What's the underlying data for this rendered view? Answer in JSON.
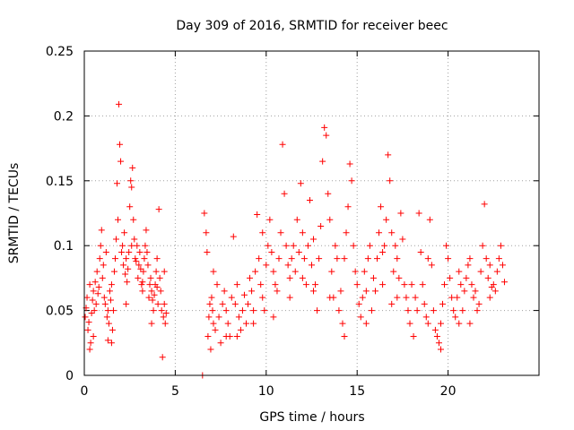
{
  "chart_data": {
    "type": "scatter",
    "title": "Day 309 of 2016, SRMTID for receiver beec",
    "xlabel": "GPS time / hours",
    "ylabel": "SRMTID / TECUs",
    "xlim": [
      0,
      25
    ],
    "ylim": [
      0,
      0.25
    ],
    "x_ticks": [
      0,
      5,
      10,
      15,
      20
    ],
    "x_tick_labels": [
      "0",
      "5",
      "10",
      "15",
      "20"
    ],
    "y_ticks": [
      0,
      0.05,
      0.1,
      0.15,
      0.2,
      0.25
    ],
    "y_tick_labels": [
      "0",
      "0.05",
      "0.1",
      "0.15",
      "0.2",
      "0.25"
    ],
    "grid": true,
    "marker": "plus",
    "color": "#ff0000",
    "series": [
      {
        "name": "SRMTID",
        "points": [
          [
            0.05,
            0.045
          ],
          [
            0.1,
            0.052
          ],
          [
            0.15,
            0.06
          ],
          [
            0.2,
            0.035
          ],
          [
            0.25,
            0.041
          ],
          [
            0.3,
            0.07
          ],
          [
            0.35,
            0.025
          ],
          [
            0.4,
            0.048
          ],
          [
            0.45,
            0.058
          ],
          [
            0.5,
            0.065
          ],
          [
            0.55,
            0.05
          ],
          [
            0.6,
            0.072
          ],
          [
            0.65,
            0.055
          ],
          [
            0.7,
            0.08
          ],
          [
            0.75,
            0.063
          ],
          [
            0.8,
            0.068
          ],
          [
            0.85,
            0.09
          ],
          [
            0.9,
            0.1
          ],
          [
            0.95,
            0.112
          ],
          [
            1.0,
            0.075
          ],
          [
            1.05,
            0.085
          ],
          [
            1.1,
            0.06
          ],
          [
            1.15,
            0.055
          ],
          [
            1.2,
            0.095
          ],
          [
            1.25,
            0.045
          ],
          [
            1.3,
            0.05
          ],
          [
            1.35,
            0.04
          ],
          [
            1.4,
            0.065
          ],
          [
            1.45,
            0.058
          ],
          [
            1.5,
            0.07
          ],
          [
            1.55,
            0.035
          ],
          [
            1.6,
            0.05
          ],
          [
            1.65,
            0.08
          ],
          [
            1.7,
            0.09
          ],
          [
            1.75,
            0.105
          ],
          [
            1.8,
            0.148
          ],
          [
            1.85,
            0.12
          ],
          [
            1.9,
            0.209
          ],
          [
            1.95,
            0.178
          ],
          [
            2.0,
            0.165
          ],
          [
            2.05,
            0.095
          ],
          [
            2.1,
            0.1
          ],
          [
            2.15,
            0.085
          ],
          [
            2.2,
            0.11
          ],
          [
            2.25,
            0.078
          ],
          [
            2.3,
            0.09
          ],
          [
            2.35,
            0.072
          ],
          [
            2.4,
            0.082
          ],
          [
            2.45,
            0.095
          ],
          [
            2.5,
            0.13
          ],
          [
            2.55,
            0.15
          ],
          [
            2.6,
            0.145
          ],
          [
            2.65,
            0.16
          ],
          [
            2.7,
            0.12
          ],
          [
            2.75,
            0.105
          ],
          [
            2.8,
            0.09
          ],
          [
            2.85,
            0.088
          ],
          [
            2.9,
            0.1
          ],
          [
            2.95,
            0.075
          ],
          [
            3.0,
            0.085
          ],
          [
            3.05,
            0.095
          ],
          [
            3.1,
            0.082
          ],
          [
            3.15,
            0.07
          ],
          [
            3.2,
            0.065
          ],
          [
            3.25,
            0.08
          ],
          [
            3.3,
            0.09
          ],
          [
            3.35,
            0.1
          ],
          [
            3.4,
            0.112
          ],
          [
            3.45,
            0.095
          ],
          [
            3.5,
            0.085
          ],
          [
            3.55,
            0.06
          ],
          [
            3.6,
            0.07
          ],
          [
            3.65,
            0.075
          ],
          [
            3.7,
            0.065
          ],
          [
            3.75,
            0.058
          ],
          [
            3.8,
            0.05
          ],
          [
            3.85,
            0.062
          ],
          [
            3.9,
            0.07
          ],
          [
            3.95,
            0.08
          ],
          [
            4.0,
            0.068
          ],
          [
            4.05,
            0.055
          ],
          [
            4.1,
            0.128
          ],
          [
            4.15,
            0.075
          ],
          [
            4.2,
            0.065
          ],
          [
            4.25,
            0.05
          ],
          [
            4.3,
            0.014
          ],
          [
            4.35,
            0.045
          ],
          [
            4.4,
            0.055
          ],
          [
            4.45,
            0.04
          ],
          [
            4.5,
            0.048
          ],
          [
            0.3,
            0.02
          ],
          [
            0.5,
            0.03
          ],
          [
            1.3,
            0.027
          ],
          [
            1.5,
            0.025
          ],
          [
            2.3,
            0.055
          ],
          [
            2.6,
            0.1
          ],
          [
            3.2,
            0.072
          ],
          [
            3.7,
            0.04
          ],
          [
            4.0,
            0.09
          ],
          [
            4.4,
            0.08
          ],
          [
            6.5,
            0.0
          ],
          [
            6.6,
            0.125
          ],
          [
            6.7,
            0.11
          ],
          [
            6.75,
            0.095
          ],
          [
            6.8,
            0.03
          ],
          [
            6.85,
            0.045
          ],
          [
            6.9,
            0.055
          ],
          [
            6.95,
            0.02
          ],
          [
            7.0,
            0.06
          ],
          [
            7.05,
            0.05
          ],
          [
            7.1,
            0.04
          ],
          [
            7.2,
            0.035
          ],
          [
            7.3,
            0.07
          ],
          [
            7.4,
            0.045
          ],
          [
            7.5,
            0.025
          ],
          [
            7.6,
            0.055
          ],
          [
            7.7,
            0.065
          ],
          [
            7.8,
            0.05
          ],
          [
            7.9,
            0.04
          ],
          [
            8.0,
            0.03
          ],
          [
            8.1,
            0.06
          ],
          [
            8.2,
            0.107
          ],
          [
            8.3,
            0.055
          ],
          [
            8.4,
            0.07
          ],
          [
            8.5,
            0.045
          ],
          [
            8.6,
            0.035
          ],
          [
            8.7,
            0.05
          ],
          [
            8.8,
            0.062
          ],
          [
            8.9,
            0.04
          ],
          [
            9.0,
            0.055
          ],
          [
            9.1,
            0.075
          ],
          [
            9.2,
            0.065
          ],
          [
            9.3,
            0.05
          ],
          [
            9.4,
            0.08
          ],
          [
            9.5,
            0.124
          ],
          [
            9.6,
            0.09
          ],
          [
            9.7,
            0.07
          ],
          [
            9.8,
            0.06
          ],
          [
            9.9,
            0.05
          ],
          [
            10.0,
            0.085
          ],
          [
            10.1,
            0.1
          ],
          [
            10.2,
            0.12
          ],
          [
            10.3,
            0.095
          ],
          [
            10.4,
            0.08
          ],
          [
            10.5,
            0.07
          ],
          [
            10.6,
            0.065
          ],
          [
            10.7,
            0.09
          ],
          [
            10.8,
            0.11
          ],
          [
            10.9,
            0.178
          ],
          [
            11.0,
            0.14
          ],
          [
            11.1,
            0.1
          ],
          [
            11.2,
            0.085
          ],
          [
            11.3,
            0.075
          ],
          [
            11.4,
            0.09
          ],
          [
            11.5,
            0.1
          ],
          [
            11.6,
            0.08
          ],
          [
            11.7,
            0.12
          ],
          [
            11.8,
            0.095
          ],
          [
            11.9,
            0.148
          ],
          [
            12.0,
            0.11
          ],
          [
            12.1,
            0.09
          ],
          [
            12.2,
            0.07
          ],
          [
            12.3,
            0.1
          ],
          [
            12.4,
            0.135
          ],
          [
            12.5,
            0.085
          ],
          [
            12.6,
            0.065
          ],
          [
            12.7,
            0.07
          ],
          [
            12.8,
            0.05
          ],
          [
            12.9,
            0.09
          ],
          [
            13.0,
            0.115
          ],
          [
            13.1,
            0.165
          ],
          [
            13.2,
            0.191
          ],
          [
            13.3,
            0.185
          ],
          [
            13.4,
            0.14
          ],
          [
            13.5,
            0.12
          ],
          [
            13.6,
            0.08
          ],
          [
            13.7,
            0.06
          ],
          [
            13.8,
            0.1
          ],
          [
            13.9,
            0.09
          ],
          [
            14.0,
            0.05
          ],
          [
            14.1,
            0.065
          ],
          [
            14.2,
            0.04
          ],
          [
            14.3,
            0.03
          ],
          [
            14.4,
            0.11
          ],
          [
            14.5,
            0.13
          ],
          [
            14.6,
            0.163
          ],
          [
            14.7,
            0.15
          ],
          [
            14.8,
            0.1
          ],
          [
            14.9,
            0.08
          ],
          [
            15.0,
            0.07
          ],
          [
            15.1,
            0.055
          ],
          [
            15.2,
            0.045
          ],
          [
            15.3,
            0.06
          ],
          [
            15.4,
            0.08
          ],
          [
            15.5,
            0.065
          ],
          [
            15.6,
            0.09
          ],
          [
            15.7,
            0.1
          ],
          [
            15.8,
            0.05
          ],
          [
            15.9,
            0.075
          ],
          [
            16.0,
            0.065
          ],
          [
            16.1,
            0.09
          ],
          [
            16.2,
            0.11
          ],
          [
            16.3,
            0.13
          ],
          [
            16.4,
            0.095
          ],
          [
            16.5,
            0.1
          ],
          [
            16.6,
            0.12
          ],
          [
            16.7,
            0.17
          ],
          [
            16.8,
            0.15
          ],
          [
            16.9,
            0.11
          ],
          [
            17.0,
            0.08
          ],
          [
            17.1,
            0.1
          ],
          [
            17.2,
            0.09
          ],
          [
            17.3,
            0.075
          ],
          [
            17.4,
            0.125
          ],
          [
            17.5,
            0.105
          ],
          [
            17.6,
            0.07
          ],
          [
            17.7,
            0.06
          ],
          [
            17.8,
            0.05
          ],
          [
            17.9,
            0.04
          ],
          [
            18.0,
            0.07
          ],
          [
            18.1,
            0.03
          ],
          [
            18.2,
            0.06
          ],
          [
            18.3,
            0.05
          ],
          [
            18.4,
            0.125
          ],
          [
            18.5,
            0.095
          ],
          [
            18.6,
            0.07
          ],
          [
            18.7,
            0.055
          ],
          [
            18.8,
            0.045
          ],
          [
            18.9,
            0.04
          ],
          [
            19.0,
            0.12
          ],
          [
            19.1,
            0.085
          ],
          [
            19.2,
            0.05
          ],
          [
            19.3,
            0.035
          ],
          [
            19.4,
            0.03
          ],
          [
            19.5,
            0.025
          ],
          [
            19.6,
            0.04
          ],
          [
            19.7,
            0.055
          ],
          [
            19.8,
            0.07
          ],
          [
            19.9,
            0.1
          ],
          [
            20.0,
            0.09
          ],
          [
            20.1,
            0.075
          ],
          [
            20.2,
            0.06
          ],
          [
            20.3,
            0.05
          ],
          [
            20.4,
            0.045
          ],
          [
            20.5,
            0.06
          ],
          [
            20.6,
            0.08
          ],
          [
            20.7,
            0.07
          ],
          [
            20.8,
            0.05
          ],
          [
            20.9,
            0.065
          ],
          [
            21.0,
            0.075
          ],
          [
            21.1,
            0.085
          ],
          [
            21.2,
            0.09
          ],
          [
            21.3,
            0.07
          ],
          [
            21.4,
            0.06
          ],
          [
            21.5,
            0.065
          ],
          [
            21.6,
            0.05
          ],
          [
            21.7,
            0.055
          ],
          [
            21.8,
            0.08
          ],
          [
            21.9,
            0.1
          ],
          [
            22.0,
            0.132
          ],
          [
            22.1,
            0.09
          ],
          [
            22.2,
            0.075
          ],
          [
            22.3,
            0.06
          ],
          [
            22.4,
            0.068
          ],
          [
            22.5,
            0.07
          ],
          [
            22.6,
            0.065
          ],
          [
            22.7,
            0.08
          ],
          [
            22.8,
            0.09
          ],
          [
            22.9,
            0.1
          ],
          [
            23.0,
            0.085
          ],
          [
            23.1,
            0.072
          ],
          [
            7.1,
            0.08
          ],
          [
            8.4,
            0.03
          ],
          [
            9.8,
            0.11
          ],
          [
            10.4,
            0.045
          ],
          [
            11.3,
            0.06
          ],
          [
            12.0,
            0.075
          ],
          [
            13.5,
            0.06
          ],
          [
            14.3,
            0.09
          ],
          [
            15.5,
            0.04
          ],
          [
            16.4,
            0.07
          ],
          [
            17.2,
            0.06
          ],
          [
            18.9,
            0.09
          ],
          [
            19.6,
            0.02
          ],
          [
            20.6,
            0.04
          ],
          [
            21.2,
            0.04
          ],
          [
            22.3,
            0.085
          ],
          [
            7.8,
            0.03
          ],
          [
            9.3,
            0.04
          ],
          [
            12.6,
            0.105
          ],
          [
            16.9,
            0.055
          ]
        ]
      }
    ]
  }
}
